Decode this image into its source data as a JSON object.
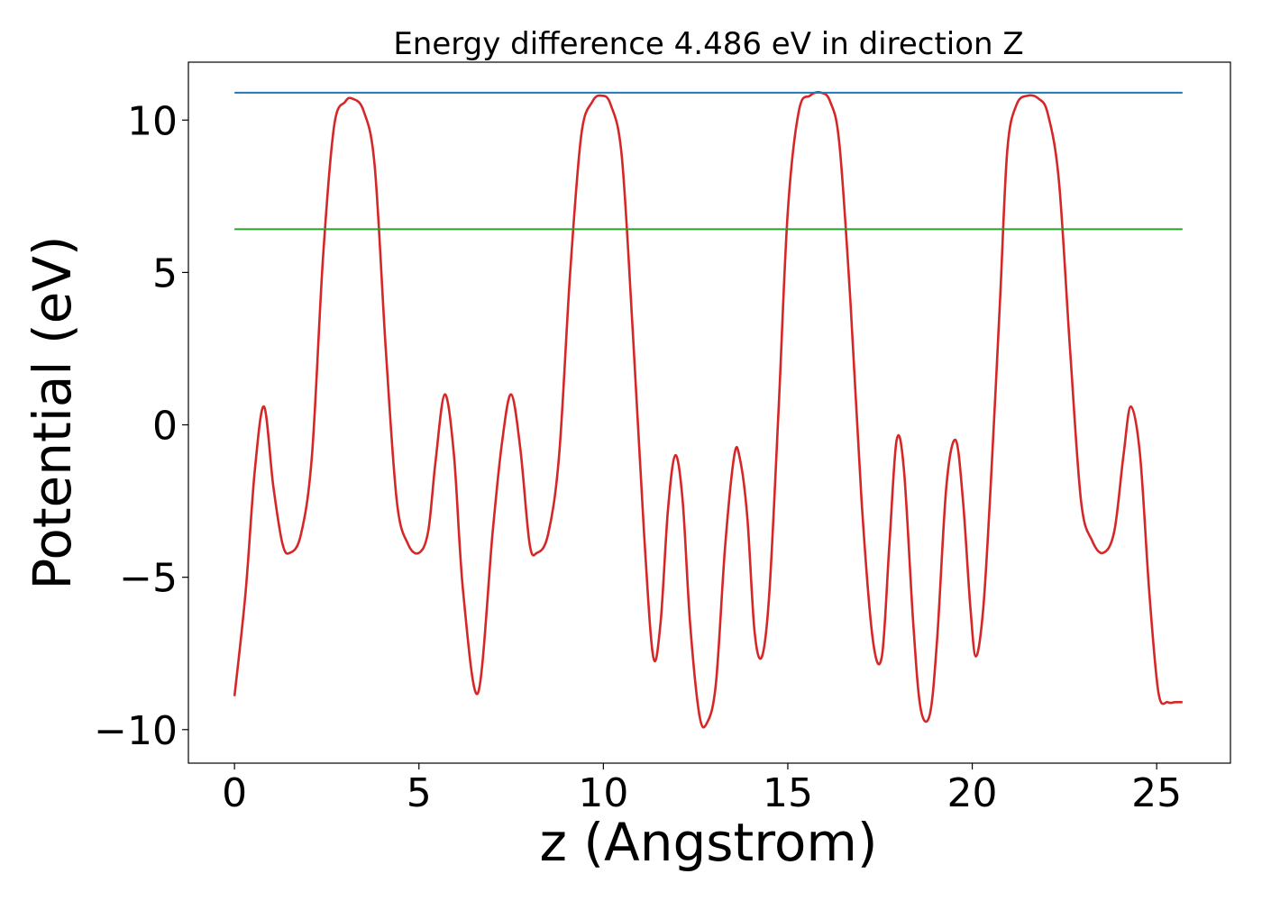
{
  "chart_data": {
    "type": "line",
    "title": "Energy difference 4.486 eV in direction Z",
    "xlabel": "z (Angstrom)",
    "ylabel": "Potential (eV)",
    "xlim": [
      -1.25,
      27.0
    ],
    "ylim": [
      -11.1,
      11.9
    ],
    "xticks": [
      0,
      5,
      10,
      15,
      20,
      25
    ],
    "xtick_labels": [
      "0",
      "5",
      "10",
      "15",
      "20",
      "25"
    ],
    "yticks": [
      -10,
      -5,
      0,
      5,
      10
    ],
    "ytick_labels": [
      "−10",
      "−5",
      "0",
      "5",
      "10"
    ],
    "grid": false,
    "legend": "none",
    "series": [
      {
        "color": "#d62728",
        "x": [
          0.0,
          0.3,
          0.55,
          0.8,
          1.05,
          1.3,
          1.5,
          1.8,
          2.1,
          2.4,
          2.7,
          3.0,
          3.2,
          3.5,
          3.8,
          4.1,
          4.4,
          4.7,
          5.0,
          5.25,
          5.45,
          5.7,
          5.95,
          6.2,
          6.6,
          7.0,
          7.25,
          7.5,
          7.75,
          8.0,
          8.2,
          8.5,
          8.8,
          9.1,
          9.4,
          9.7,
          9.95,
          10.2,
          10.5,
          10.8,
          11.1,
          11.35,
          11.55,
          11.75,
          11.95,
          12.15,
          12.35,
          12.6,
          12.8,
          13.05,
          13.3,
          13.55,
          13.7,
          13.9,
          14.1,
          14.3,
          14.5,
          14.75,
          15.0,
          15.3,
          15.6,
          15.9,
          16.15,
          16.4,
          16.7,
          17.0,
          17.3,
          17.55,
          17.75,
          17.95,
          18.15,
          18.4,
          18.6,
          18.85,
          19.05,
          19.3,
          19.55,
          19.75,
          19.95,
          20.1,
          20.3,
          20.5,
          20.75,
          20.95,
          21.2,
          21.5,
          21.8,
          22.05,
          22.35,
          22.65,
          22.95,
          23.25,
          23.55,
          23.85,
          24.1,
          24.3,
          24.55,
          24.8,
          25.05,
          25.3,
          25.5,
          25.7
        ],
        "y": [
          -8.9,
          -5.5,
          -1.5,
          0.6,
          -2.0,
          -3.9,
          -4.2,
          -3.6,
          -1.0,
          5.5,
          9.8,
          10.6,
          10.7,
          10.3,
          8.5,
          2.5,
          -2.5,
          -3.9,
          -4.2,
          -3.5,
          -1.2,
          1.0,
          -1.0,
          -5.5,
          -8.8,
          -3.5,
          -0.6,
          1.0,
          -0.8,
          -3.9,
          -4.2,
          -3.6,
          -1.0,
          5.0,
          9.5,
          10.6,
          10.8,
          10.5,
          8.8,
          3.0,
          -3.5,
          -7.6,
          -6.5,
          -2.8,
          -1.0,
          -2.5,
          -6.5,
          -9.5,
          -9.8,
          -8.5,
          -4.0,
          -1.0,
          -1.1,
          -3.0,
          -6.8,
          -7.6,
          -5.5,
          0.5,
          7.0,
          10.3,
          10.8,
          10.9,
          10.6,
          9.2,
          4.0,
          -2.5,
          -7.0,
          -7.6,
          -4.0,
          -0.5,
          -1.5,
          -6.5,
          -9.3,
          -9.5,
          -7.0,
          -2.0,
          -0.5,
          -2.5,
          -6.0,
          -7.6,
          -6.0,
          -2.0,
          4.0,
          9.0,
          10.5,
          10.8,
          10.7,
          10.2,
          8.0,
          2.5,
          -2.5,
          -3.8,
          -4.2,
          -3.5,
          -1.0,
          0.6,
          -1.0,
          -5.5,
          -8.8,
          -9.1,
          -9.1,
          -9.1
        ]
      },
      {
        "color": "#1f77b4",
        "x": [
          0,
          25.7
        ],
        "y": [
          10.9,
          10.9
        ]
      },
      {
        "color": "#2ca02c",
        "x": [
          0,
          25.7
        ],
        "y": [
          6.42,
          6.42
        ]
      }
    ]
  }
}
